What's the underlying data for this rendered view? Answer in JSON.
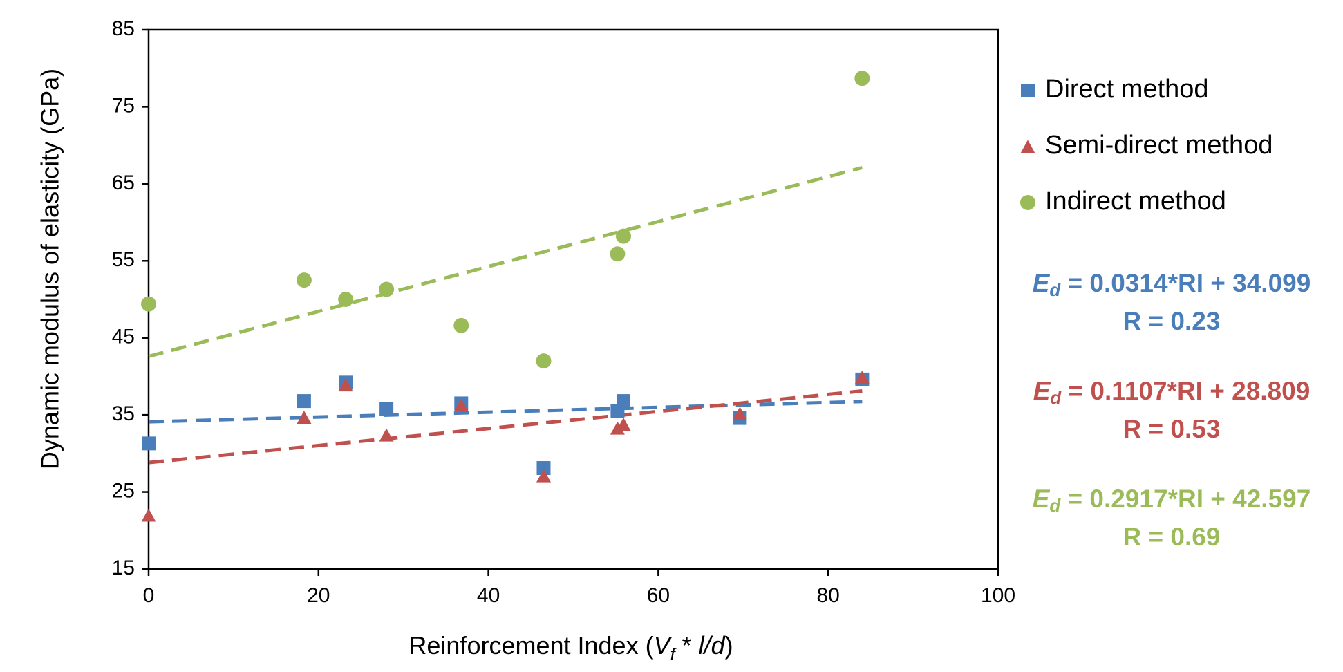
{
  "chart_data": {
    "type": "scatter",
    "title": "",
    "xlabel": {
      "prefix": "Reinforcement Index (",
      "v": "V",
      "f": "f",
      "mid": " * ",
      "ld": "l/d",
      "suffix": ")"
    },
    "ylabel": "Dynamic modulus of elasticity (GPa)",
    "xlim": [
      0,
      100
    ],
    "ylim": [
      15,
      85
    ],
    "x_ticks": [
      0,
      20,
      40,
      60,
      80,
      100
    ],
    "y_ticks": [
      15,
      25,
      35,
      45,
      55,
      65,
      75,
      85
    ],
    "x_tick_labels": [
      "0",
      "20",
      "40",
      "60",
      "80",
      "100"
    ],
    "y_tick_labels": [
      "15",
      "25",
      "35",
      "45",
      "55",
      "65",
      "75",
      "85"
    ],
    "legend_position": "right",
    "series": [
      {
        "name": "Direct method",
        "marker": "square",
        "color": "#4a7ebb",
        "points": [
          {
            "x": 0,
            "y": 31.3
          },
          {
            "x": 18.3,
            "y": 36.8
          },
          {
            "x": 23.2,
            "y": 39.2
          },
          {
            "x": 28.0,
            "y": 35.8
          },
          {
            "x": 36.8,
            "y": 36.5
          },
          {
            "x": 46.5,
            "y": 28.1
          },
          {
            "x": 55.2,
            "y": 35.5
          },
          {
            "x": 55.9,
            "y": 36.8
          },
          {
            "x": 69.6,
            "y": 34.6
          },
          {
            "x": 84.0,
            "y": 39.6
          }
        ],
        "trendline": {
          "slope": 0.0314,
          "intercept": 34.099,
          "x_range": [
            0,
            84
          ]
        },
        "equation": {
          "e": "E",
          "sub": "d",
          "rest": " = 0.0314*RI + 34.099"
        },
        "r_text": "R = 0.23"
      },
      {
        "name": "Semi-direct method",
        "marker": "triangle",
        "color": "#c0504d",
        "points": [
          {
            "x": 0,
            "y": 22.0
          },
          {
            "x": 18.3,
            "y": 34.7
          },
          {
            "x": 23.2,
            "y": 38.9
          },
          {
            "x": 28.0,
            "y": 32.4
          },
          {
            "x": 36.8,
            "y": 36.3
          },
          {
            "x": 46.5,
            "y": 27.1
          },
          {
            "x": 55.2,
            "y": 33.3
          },
          {
            "x": 55.9,
            "y": 33.8
          },
          {
            "x": 69.6,
            "y": 35.2
          },
          {
            "x": 84.0,
            "y": 39.9
          }
        ],
        "trendline": {
          "slope": 0.1107,
          "intercept": 28.809,
          "x_range": [
            0,
            84
          ]
        },
        "equation": {
          "e": "E",
          "sub": "d",
          "rest": " = 0.1107*RI + 28.809"
        },
        "r_text": "R = 0.53"
      },
      {
        "name": "Indirect method",
        "marker": "circle",
        "color": "#9bbb59",
        "points": [
          {
            "x": 0,
            "y": 49.4
          },
          {
            "x": 18.3,
            "y": 52.5
          },
          {
            "x": 23.2,
            "y": 50.0
          },
          {
            "x": 28.0,
            "y": 51.3
          },
          {
            "x": 36.8,
            "y": 46.6
          },
          {
            "x": 46.5,
            "y": 42.0
          },
          {
            "x": 55.2,
            "y": 55.9
          },
          {
            "x": 55.9,
            "y": 58.2
          },
          {
            "x": 84.0,
            "y": 78.7
          }
        ],
        "trendline": {
          "slope": 0.2917,
          "intercept": 42.597,
          "x_range": [
            0,
            84
          ]
        },
        "equation": {
          "e": "E",
          "sub": "d",
          "rest": " = 0.2917*RI + 42.597"
        },
        "r_text": "R = 0.69"
      }
    ]
  }
}
